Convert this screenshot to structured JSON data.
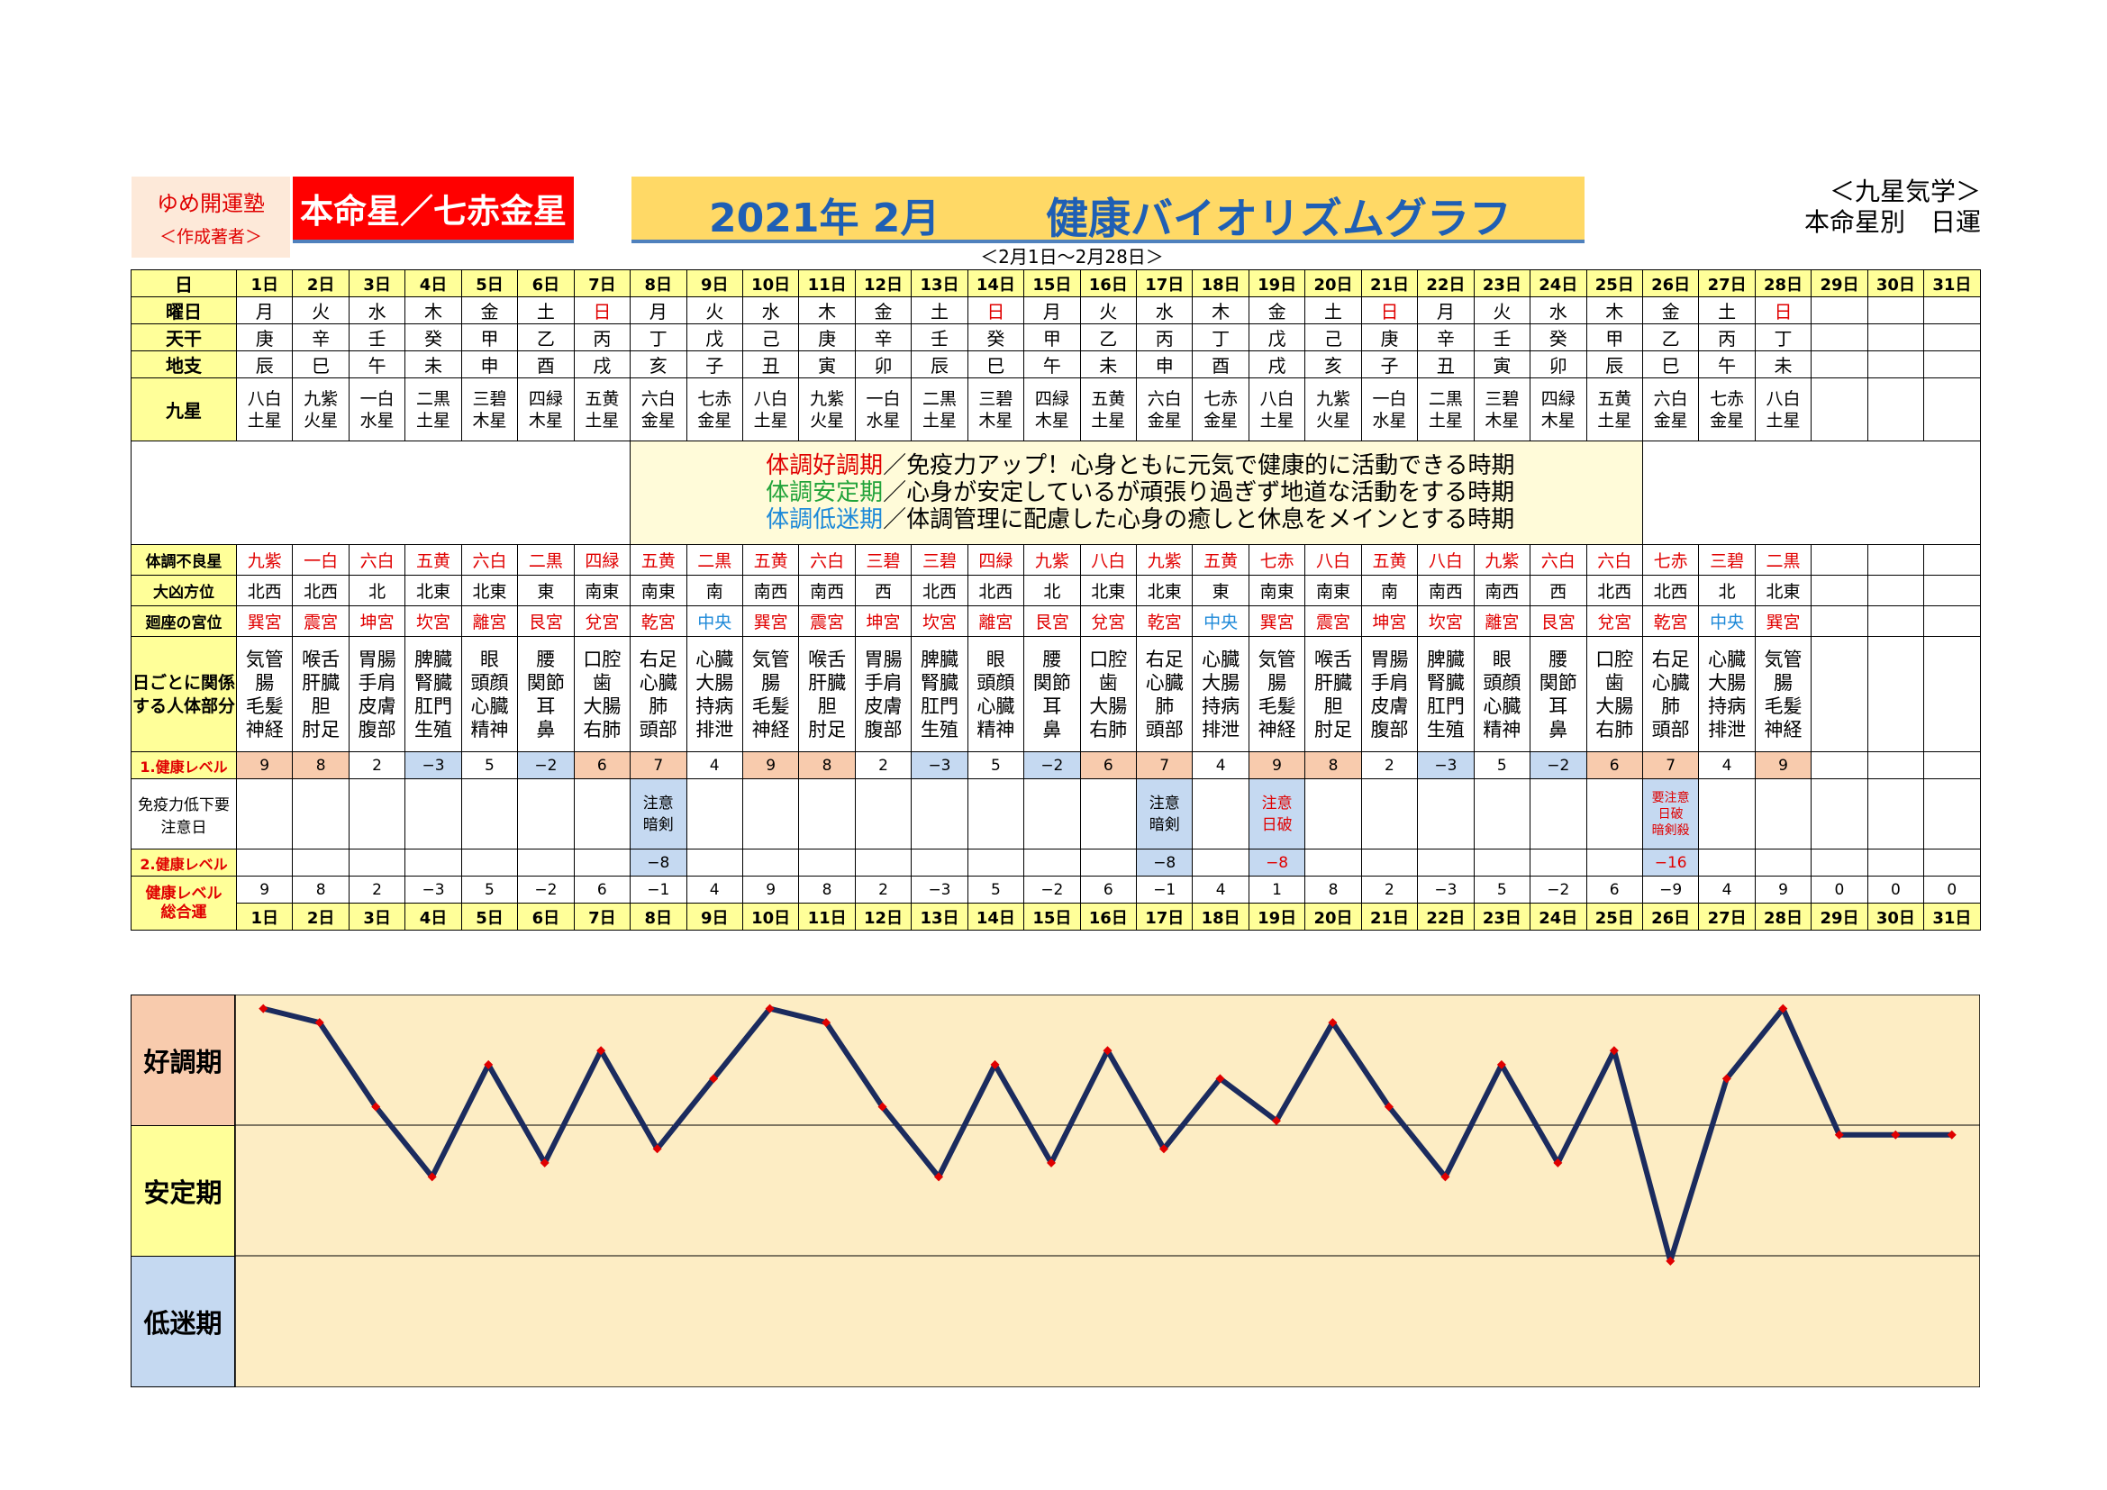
{
  "header": {
    "author_name": "ゆめ開運塾",
    "author_role": "＜作成著者＞",
    "honmei": "本命星／七赤金星",
    "title_date": "2021年 2月",
    "title_main": "健康バイオリズムグラフ",
    "kyusei_line1": "＜九星気学＞",
    "kyusei_line2": "本命星別　日運",
    "range": "＜2月1日～2月28日＞"
  },
  "labels": {
    "day": "日",
    "weekday": "曜日",
    "tenkan": "天干",
    "chishi": "地支",
    "kyusei": "九星",
    "fuchou": "体調不良星",
    "daikyo": "大凶方位",
    "kaiza": "廻座の宮位",
    "body": "日ごとに関係する人体部分",
    "level1": "1.健康レベル",
    "immune": "免疫力低下要注意日",
    "level2": "2.健康レベル",
    "total1": "健康レベル",
    "total2": "総合運"
  },
  "message": {
    "line1_term": "体調好調期",
    "line1_text": "／免疫力アップ！心身ともに元気で健康的に活動できる時期",
    "line2_term": "体調安定期",
    "line2_text": "／心身が安定しているが頑張り過ぎず地道な活動をする時期",
    "line3_term": "体調低迷期",
    "line3_text": "／体調管理に配慮した心身の癒しと休息をメインとする時期"
  },
  "days": [
    "1日",
    "2日",
    "3日",
    "4日",
    "5日",
    "6日",
    "7日",
    "8日",
    "9日",
    "10日",
    "11日",
    "12日",
    "13日",
    "14日",
    "15日",
    "16日",
    "17日",
    "18日",
    "19日",
    "20日",
    "21日",
    "22日",
    "23日",
    "24日",
    "25日",
    "26日",
    "27日",
    "28日",
    "29日",
    "30日",
    "31日"
  ],
  "weekdays": [
    "月",
    "火",
    "水",
    "木",
    "金",
    "土",
    "日",
    "月",
    "火",
    "水",
    "木",
    "金",
    "土",
    "日",
    "月",
    "火",
    "水",
    "木",
    "金",
    "土",
    "日",
    "月",
    "火",
    "水",
    "木",
    "金",
    "土",
    "日",
    "",
    "",
    ""
  ],
  "tenkan": [
    "庚",
    "辛",
    "壬",
    "癸",
    "甲",
    "乙",
    "丙",
    "丁",
    "戊",
    "己",
    "庚",
    "辛",
    "壬",
    "癸",
    "甲",
    "乙",
    "丙",
    "丁",
    "戊",
    "己",
    "庚",
    "辛",
    "壬",
    "癸",
    "甲",
    "乙",
    "丙",
    "丁",
    "",
    "",
    ""
  ],
  "chishi": [
    "辰",
    "巳",
    "午",
    "未",
    "申",
    "酉",
    "戌",
    "亥",
    "子",
    "丑",
    "寅",
    "卯",
    "辰",
    "巳",
    "午",
    "未",
    "申",
    "酉",
    "戌",
    "亥",
    "子",
    "丑",
    "寅",
    "卯",
    "辰",
    "巳",
    "午",
    "未",
    "",
    "",
    ""
  ],
  "kyusei_top": [
    "八白",
    "九紫",
    "一白",
    "二黒",
    "三碧",
    "四緑",
    "五黄",
    "六白",
    "七赤",
    "八白",
    "九紫",
    "一白",
    "二黒",
    "三碧",
    "四緑",
    "五黄",
    "六白",
    "七赤",
    "八白",
    "九紫",
    "一白",
    "二黒",
    "三碧",
    "四緑",
    "五黄",
    "六白",
    "七赤",
    "八白",
    "",
    "",
    ""
  ],
  "kyusei_bottom": [
    "土星",
    "火星",
    "水星",
    "土星",
    "木星",
    "木星",
    "土星",
    "金星",
    "金星",
    "土星",
    "火星",
    "水星",
    "土星",
    "木星",
    "木星",
    "土星",
    "金星",
    "金星",
    "土星",
    "火星",
    "水星",
    "土星",
    "木星",
    "木星",
    "土星",
    "金星",
    "金星",
    "土星",
    "",
    "",
    ""
  ],
  "fuchou": [
    "九紫",
    "一白",
    "六白",
    "五黄",
    "六白",
    "二黒",
    "四緑",
    "五黄",
    "二黒",
    "五黄",
    "六白",
    "三碧",
    "三碧",
    "四緑",
    "九紫",
    "八白",
    "九紫",
    "五黄",
    "七赤",
    "八白",
    "五黄",
    "八白",
    "九紫",
    "六白",
    "六白",
    "七赤",
    "三碧",
    "二黒",
    "",
    "",
    ""
  ],
  "daikyo": [
    "北西",
    "北西",
    "北",
    "北東",
    "北東",
    "東",
    "南東",
    "南東",
    "南",
    "南西",
    "南西",
    "西",
    "北西",
    "北西",
    "北",
    "北東",
    "北東",
    "東",
    "南東",
    "南東",
    "南",
    "南西",
    "南西",
    "西",
    "北西",
    "北西",
    "北",
    "北東",
    "",
    "",
    ""
  ],
  "kaiza": [
    "巽宮",
    "震宮",
    "坤宮",
    "坎宮",
    "離宮",
    "艮宮",
    "兌宮",
    "乾宮",
    "中央",
    "巽宮",
    "震宮",
    "坤宮",
    "坎宮",
    "離宮",
    "艮宮",
    "兌宮",
    "乾宮",
    "中央",
    "巽宮",
    "震宮",
    "坤宮",
    "坎宮",
    "離宮",
    "艮宮",
    "兌宮",
    "乾宮",
    "中央",
    "巽宮",
    "",
    "",
    ""
  ],
  "body_parts": [
    [
      "気管",
      "腸",
      "毛髪",
      "神経"
    ],
    [
      "喉舌",
      "肝臓",
      "胆",
      "肘足"
    ],
    [
      "胃腸",
      "手肩",
      "皮膚",
      "腹部"
    ],
    [
      "脾臓",
      "腎臓",
      "肛門",
      "生殖"
    ],
    [
      "眼",
      "頭顔",
      "心臓",
      "精神"
    ],
    [
      "腰",
      "関節",
      "耳",
      "鼻"
    ],
    [
      "口腔",
      "歯",
      "大腸",
      "右肺"
    ],
    [
      "右足",
      "心臓",
      "肺",
      "頭部"
    ],
    [
      "心臓",
      "大腸",
      "持病",
      "排泄"
    ],
    [
      "気管",
      "腸",
      "毛髪",
      "神経"
    ],
    [
      "喉舌",
      "肝臓",
      "胆",
      "肘足"
    ],
    [
      "胃腸",
      "手肩",
      "皮膚",
      "腹部"
    ],
    [
      "脾臓",
      "腎臓",
      "肛門",
      "生殖"
    ],
    [
      "眼",
      "頭顔",
      "心臓",
      "精神"
    ],
    [
      "腰",
      "関節",
      "耳",
      "鼻"
    ],
    [
      "口腔",
      "歯",
      "大腸",
      "右肺"
    ],
    [
      "右足",
      "心臓",
      "肺",
      "頭部"
    ],
    [
      "心臓",
      "大腸",
      "持病",
      "排泄"
    ],
    [
      "気管",
      "腸",
      "毛髪",
      "神経"
    ],
    [
      "喉舌",
      "肝臓",
      "胆",
      "肘足"
    ],
    [
      "胃腸",
      "手肩",
      "皮膚",
      "腹部"
    ],
    [
      "脾臓",
      "腎臓",
      "肛門",
      "生殖"
    ],
    [
      "眼",
      "頭顔",
      "心臓",
      "精神"
    ],
    [
      "腰",
      "関節",
      "耳",
      "鼻"
    ],
    [
      "口腔",
      "歯",
      "大腸",
      "右肺"
    ],
    [
      "右足",
      "心臓",
      "肺",
      "頭部"
    ],
    [
      "心臓",
      "大腸",
      "持病",
      "排泄"
    ],
    [
      "気管",
      "腸",
      "毛髪",
      "神経"
    ],
    [],
    [],
    []
  ],
  "level1": [
    "9",
    "8",
    "2",
    "−3",
    "5",
    "−2",
    "6",
    "7",
    "4",
    "9",
    "8",
    "2",
    "−3",
    "5",
    "−2",
    "6",
    "7",
    "4",
    "9",
    "8",
    "2",
    "−3",
    "5",
    "−2",
    "6",
    "7",
    "4",
    "9",
    "",
    "",
    ""
  ],
  "immune": [
    "",
    "",
    "",
    "",
    "",
    "",
    "",
    "注意\n暗剣",
    "",
    "",
    "",
    "",
    "",
    "",
    "",
    "",
    "注意\n暗剣",
    "",
    "注意\n日破",
    "",
    "",
    "",
    "",
    "",
    "",
    "要注意\n日破\n暗剣殺",
    "",
    "",
    "",
    "",
    ""
  ],
  "level2": [
    "",
    "",
    "",
    "",
    "",
    "",
    "",
    "−8",
    "",
    "",
    "",
    "",
    "",
    "",
    "",
    "",
    "−8",
    "",
    "−8",
    "",
    "",
    "",
    "",
    "",
    "",
    "−16",
    "",
    "",
    "",
    "",
    ""
  ],
  "totals": [
    "9",
    "8",
    "2",
    "−3",
    "5",
    "−2",
    "6",
    "−1",
    "4",
    "9",
    "8",
    "2",
    "−3",
    "5",
    "−2",
    "6",
    "−1",
    "4",
    "1",
    "8",
    "2",
    "−3",
    "5",
    "−2",
    "6",
    "−9",
    "4",
    "9",
    "0",
    "0",
    "0"
  ],
  "zones": {
    "good": "好調期",
    "stable": "安定期",
    "low": "低迷期"
  },
  "chart_data": {
    "type": "line",
    "categories": [
      "1日",
      "2日",
      "3日",
      "4日",
      "5日",
      "6日",
      "7日",
      "8日",
      "9日",
      "10日",
      "11日",
      "12日",
      "13日",
      "14日",
      "15日",
      "16日",
      "17日",
      "18日",
      "19日",
      "20日",
      "21日",
      "22日",
      "23日",
      "24日",
      "25日",
      "26日",
      "27日",
      "28日",
      "29日",
      "30日",
      "31日"
    ],
    "values": [
      9,
      8,
      2,
      -3,
      5,
      -2,
      6,
      -1,
      4,
      9,
      8,
      2,
      -3,
      5,
      -2,
      6,
      -1,
      4,
      1,
      8,
      2,
      -3,
      5,
      -2,
      6,
      -9,
      4,
      9,
      0,
      0,
      0
    ],
    "ylim": [
      -18,
      10
    ],
    "bands": [
      "好調期",
      "安定期",
      "低迷期"
    ],
    "colors": {
      "line": "#1b2b5e",
      "marker": "#e00000",
      "good_bg": "#f8cbad",
      "stable_bg": "#ffff99",
      "low_bg": "#c5d9f1",
      "plot_bg": "#fdedc4"
    }
  }
}
